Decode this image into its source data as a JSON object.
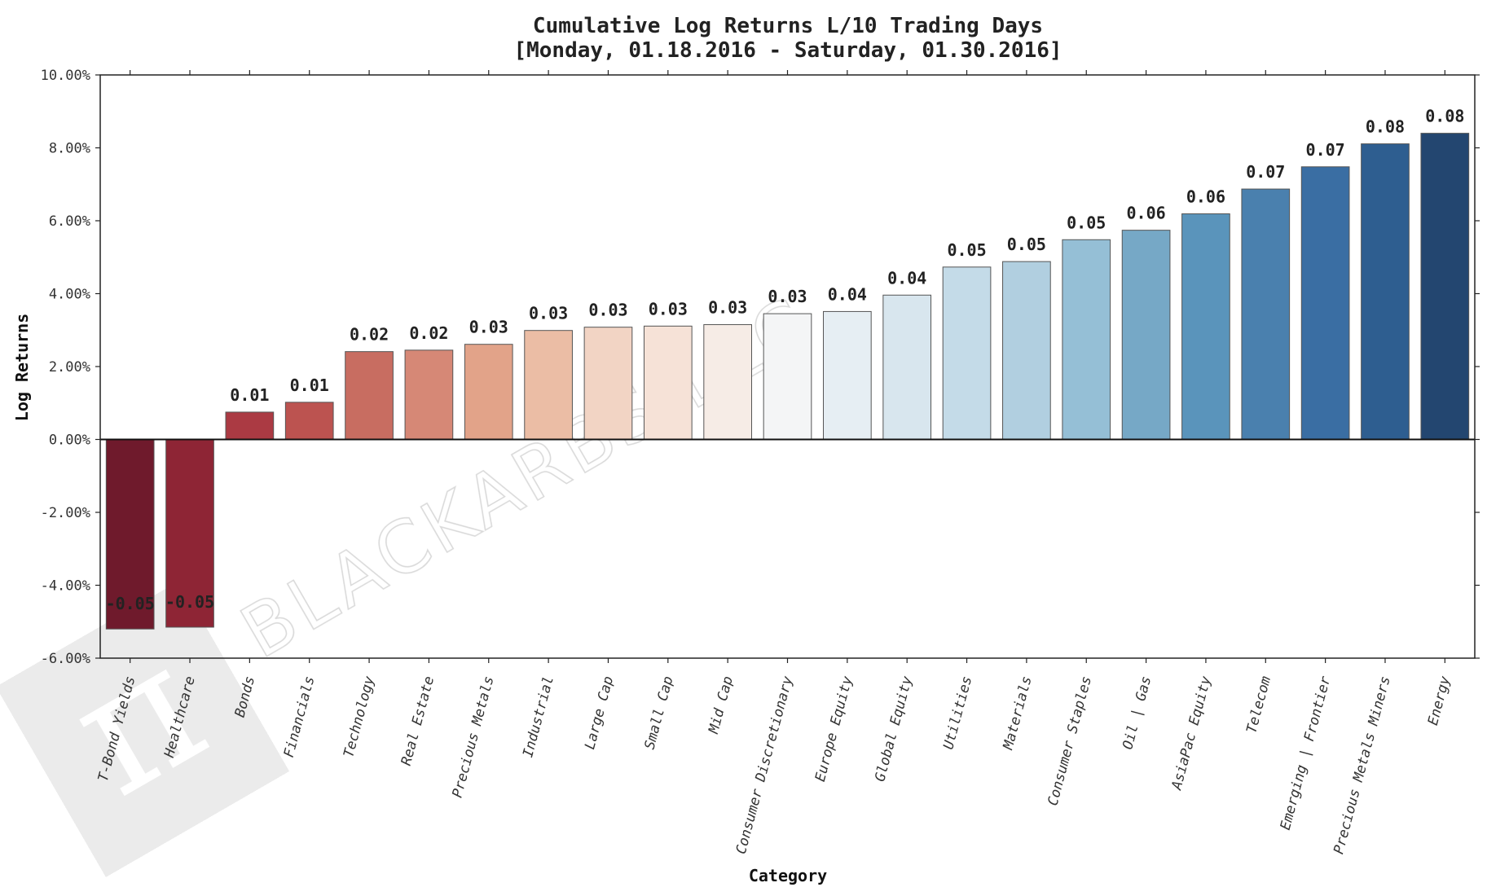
{
  "chart_data": {
    "type": "bar",
    "title": "Cumulative Log Returns L/10 Trading Days",
    "subtitle": "[Monday, 01.18.2016 - Saturday, 01.30.2016]",
    "xlabel": "Category",
    "ylabel": "Log Returns",
    "ylim": [
      -0.06,
      0.1
    ],
    "yticks": [
      -0.06,
      -0.04,
      -0.02,
      0.0,
      0.02,
      0.04,
      0.06,
      0.08,
      0.1
    ],
    "ytick_labels": [
      "-6.00%",
      "-4.00%",
      "-2.00%",
      "0.00%",
      "2.00%",
      "4.00%",
      "6.00%",
      "8.00%",
      "10.00%"
    ],
    "grid": false,
    "categories": [
      "T-Bond Yields",
      "Healthcare",
      "Bonds",
      "Financials",
      "Technology",
      "Real Estate",
      "Precious Metals",
      "Industrial",
      "Large Cap",
      "Small Cap",
      "Mid Cap",
      "Consumer Discretionary",
      "Europe Equity",
      "Global Equity",
      "Utilities",
      "Materials",
      "Consumer Staples",
      "Oil | Gas",
      "AsiaPac Equity",
      "Telecom",
      "Emerging | Frontier",
      "Precious Metals Miners",
      "Energy"
    ],
    "values": [
      -0.052,
      -0.0515,
      0.0075,
      0.0102,
      0.0241,
      0.0245,
      0.0261,
      0.0299,
      0.0308,
      0.0311,
      0.0315,
      0.0345,
      0.0351,
      0.0396,
      0.0473,
      0.0488,
      0.0548,
      0.0574,
      0.0619,
      0.0687,
      0.0748,
      0.0811,
      0.084
    ],
    "value_labels": [
      "-0.05",
      "-0.05",
      "0.01",
      "0.01",
      "0.02",
      "0.02",
      "0.03",
      "0.03",
      "0.03",
      "0.03",
      "0.03",
      "0.03",
      "0.04",
      "0.04",
      "0.05",
      "0.05",
      "0.05",
      "0.06",
      "0.06",
      "0.07",
      "0.07",
      "0.08",
      "0.08"
    ],
    "colors": [
      "#6f1a2c",
      "#8e2535",
      "#ab3a43",
      "#bc5350",
      "#c86d61",
      "#d68876",
      "#e2a389",
      "#ebbda5",
      "#f2d4c4",
      "#f6e2d7",
      "#f6ece6",
      "#f4f5f6",
      "#e6eef3",
      "#d8e6ee",
      "#c4dbe8",
      "#b1cfe0",
      "#95bfd6",
      "#76a8c6",
      "#5a94bb",
      "#4a80ae",
      "#3a6ea3",
      "#2e5e90",
      "#234670"
    ]
  },
  "watermark": {
    "text": "BLACKARBS LLC",
    "logo_glyph": "π"
  }
}
